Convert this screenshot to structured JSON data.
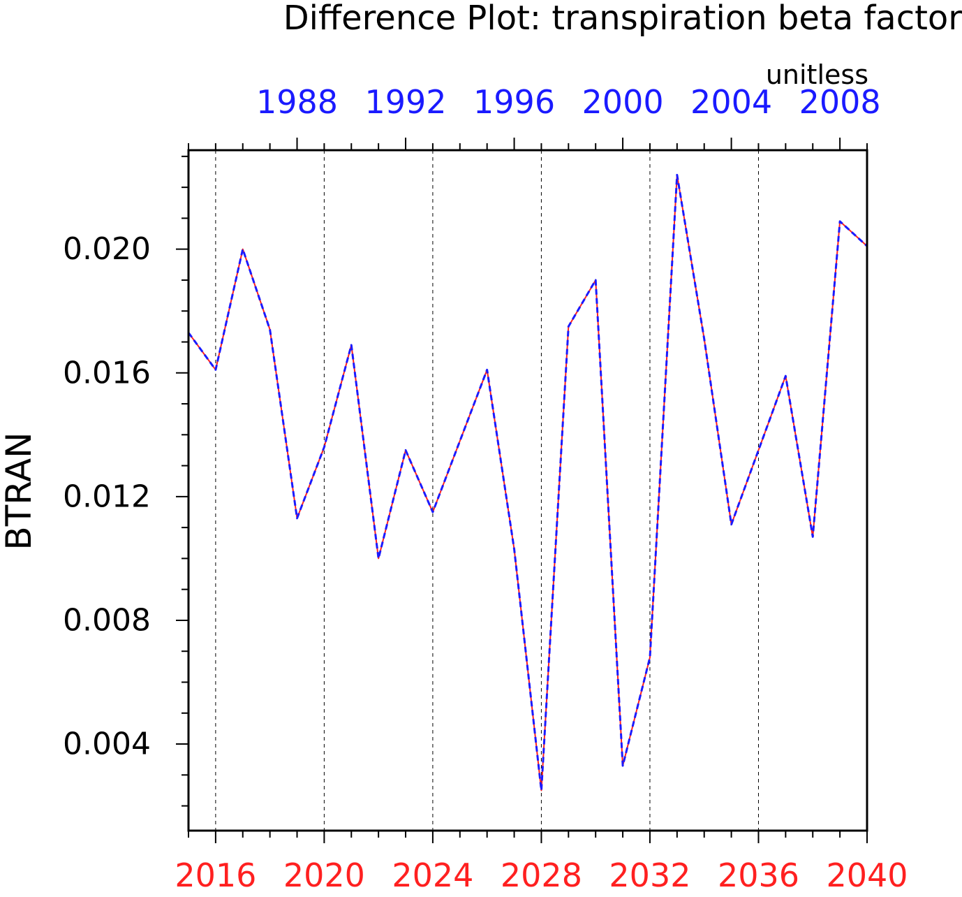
{
  "chart_data": {
    "type": "line",
    "title": "Difference Plot: transpiration beta factor",
    "units_label": "unitless",
    "ylabel": "BTRAN",
    "ylim": [
      0.0012,
      0.0232
    ],
    "yticks": [
      0.004,
      0.008,
      0.012,
      0.016,
      0.02
    ],
    "ytick_labels": [
      "0.004",
      "0.008",
      "0.012",
      "0.016",
      "0.020"
    ],
    "bottom_axis": {
      "range": [
        2015,
        2040
      ],
      "ticks": [
        2016,
        2020,
        2024,
        2028,
        2032,
        2036,
        2040
      ],
      "tick_labels": [
        "2016",
        "2020",
        "2024",
        "2028",
        "2032",
        "2036",
        "2040"
      ],
      "color": "#ff2020"
    },
    "top_axis": {
      "range": [
        1984,
        2009
      ],
      "ticks": [
        1988,
        1992,
        1996,
        2000,
        2004,
        2008
      ],
      "tick_labels": [
        "1988",
        "1992",
        "1996",
        "2000",
        "2004",
        "2008"
      ],
      "color": "#1a1aff"
    },
    "grid": "vertical dashed lines at bottom-axis major ticks",
    "series": [
      {
        "color": "#ff2020",
        "style": "solid",
        "x": [
          2015,
          2016,
          2017,
          2018,
          2019,
          2020,
          2021,
          2022,
          2023,
          2024,
          2025,
          2026,
          2027,
          2028,
          2029,
          2030,
          2031,
          2032,
          2033,
          2034,
          2035,
          2036,
          2037,
          2038,
          2039,
          2040
        ],
        "y": [
          0.0173,
          0.0161,
          0.02,
          0.0174,
          0.0113,
          0.0136,
          0.0169,
          0.01,
          0.0135,
          0.0115,
          0.0138,
          0.0161,
          0.0103,
          0.0025,
          0.0175,
          0.019,
          0.0033,
          0.0068,
          0.0224,
          0.0171,
          0.0111,
          0.0135,
          0.0159,
          0.0107,
          0.0209,
          0.0201
        ]
      },
      {
        "color": "#1a1aff",
        "style": "dashed",
        "x": [
          1984,
          1985,
          1986,
          1987,
          1988,
          1989,
          1990,
          1991,
          1992,
          1993,
          1994,
          1995,
          1996,
          1997,
          1998,
          1999,
          2000,
          2001,
          2002,
          2003,
          2004,
          2005,
          2006,
          2007,
          2008,
          2009
        ],
        "y": [
          0.0173,
          0.0161,
          0.02,
          0.0174,
          0.0113,
          0.0136,
          0.0169,
          0.01,
          0.0135,
          0.0115,
          0.0138,
          0.0161,
          0.0103,
          0.0025,
          0.0175,
          0.019,
          0.0033,
          0.0068,
          0.0224,
          0.0171,
          0.0111,
          0.0135,
          0.0159,
          0.0107,
          0.0209,
          0.0201
        ]
      }
    ]
  }
}
